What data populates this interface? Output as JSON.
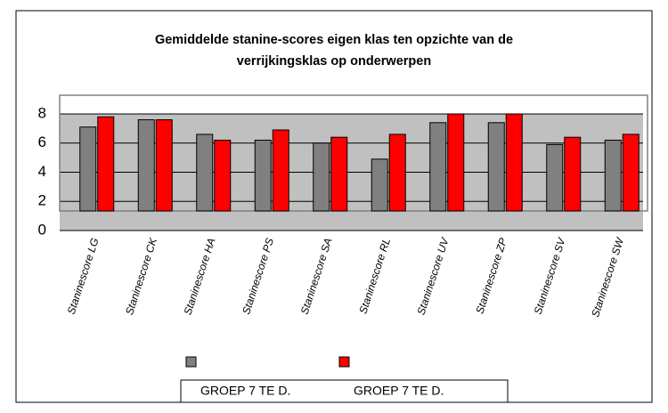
{
  "chart_data": {
    "type": "bar",
    "title": "Gemiddelde stanine-scores eigen klas ten opzichte van de verrijkingsklas op onderwerpen",
    "categories": [
      "Staninescore LG",
      "Staninescore CK",
      "Staninescore HA",
      "Staninescore PS",
      "Staninescore SA",
      "Staninescore RL",
      "Staninescore UV",
      "Staninescore ZP",
      "Staninescore SV",
      "Staninescore SW"
    ],
    "series": [
      {
        "name": "GROEP 7 TE D.",
        "color": "#808080",
        "values": [
          7.1,
          7.6,
          6.6,
          6.2,
          6.0,
          4.9,
          7.4,
          7.4,
          5.9,
          6.2
        ]
      },
      {
        "name": "GROEP 7 TE D.",
        "color": "#ff0000",
        "values": [
          7.8,
          7.6,
          6.2,
          6.9,
          6.4,
          6.6,
          8.0,
          8.0,
          6.4,
          6.6
        ]
      }
    ],
    "ylim": [
      0,
      8
    ],
    "yticks": [
      0,
      2,
      4,
      6,
      8
    ],
    "grid": true
  }
}
